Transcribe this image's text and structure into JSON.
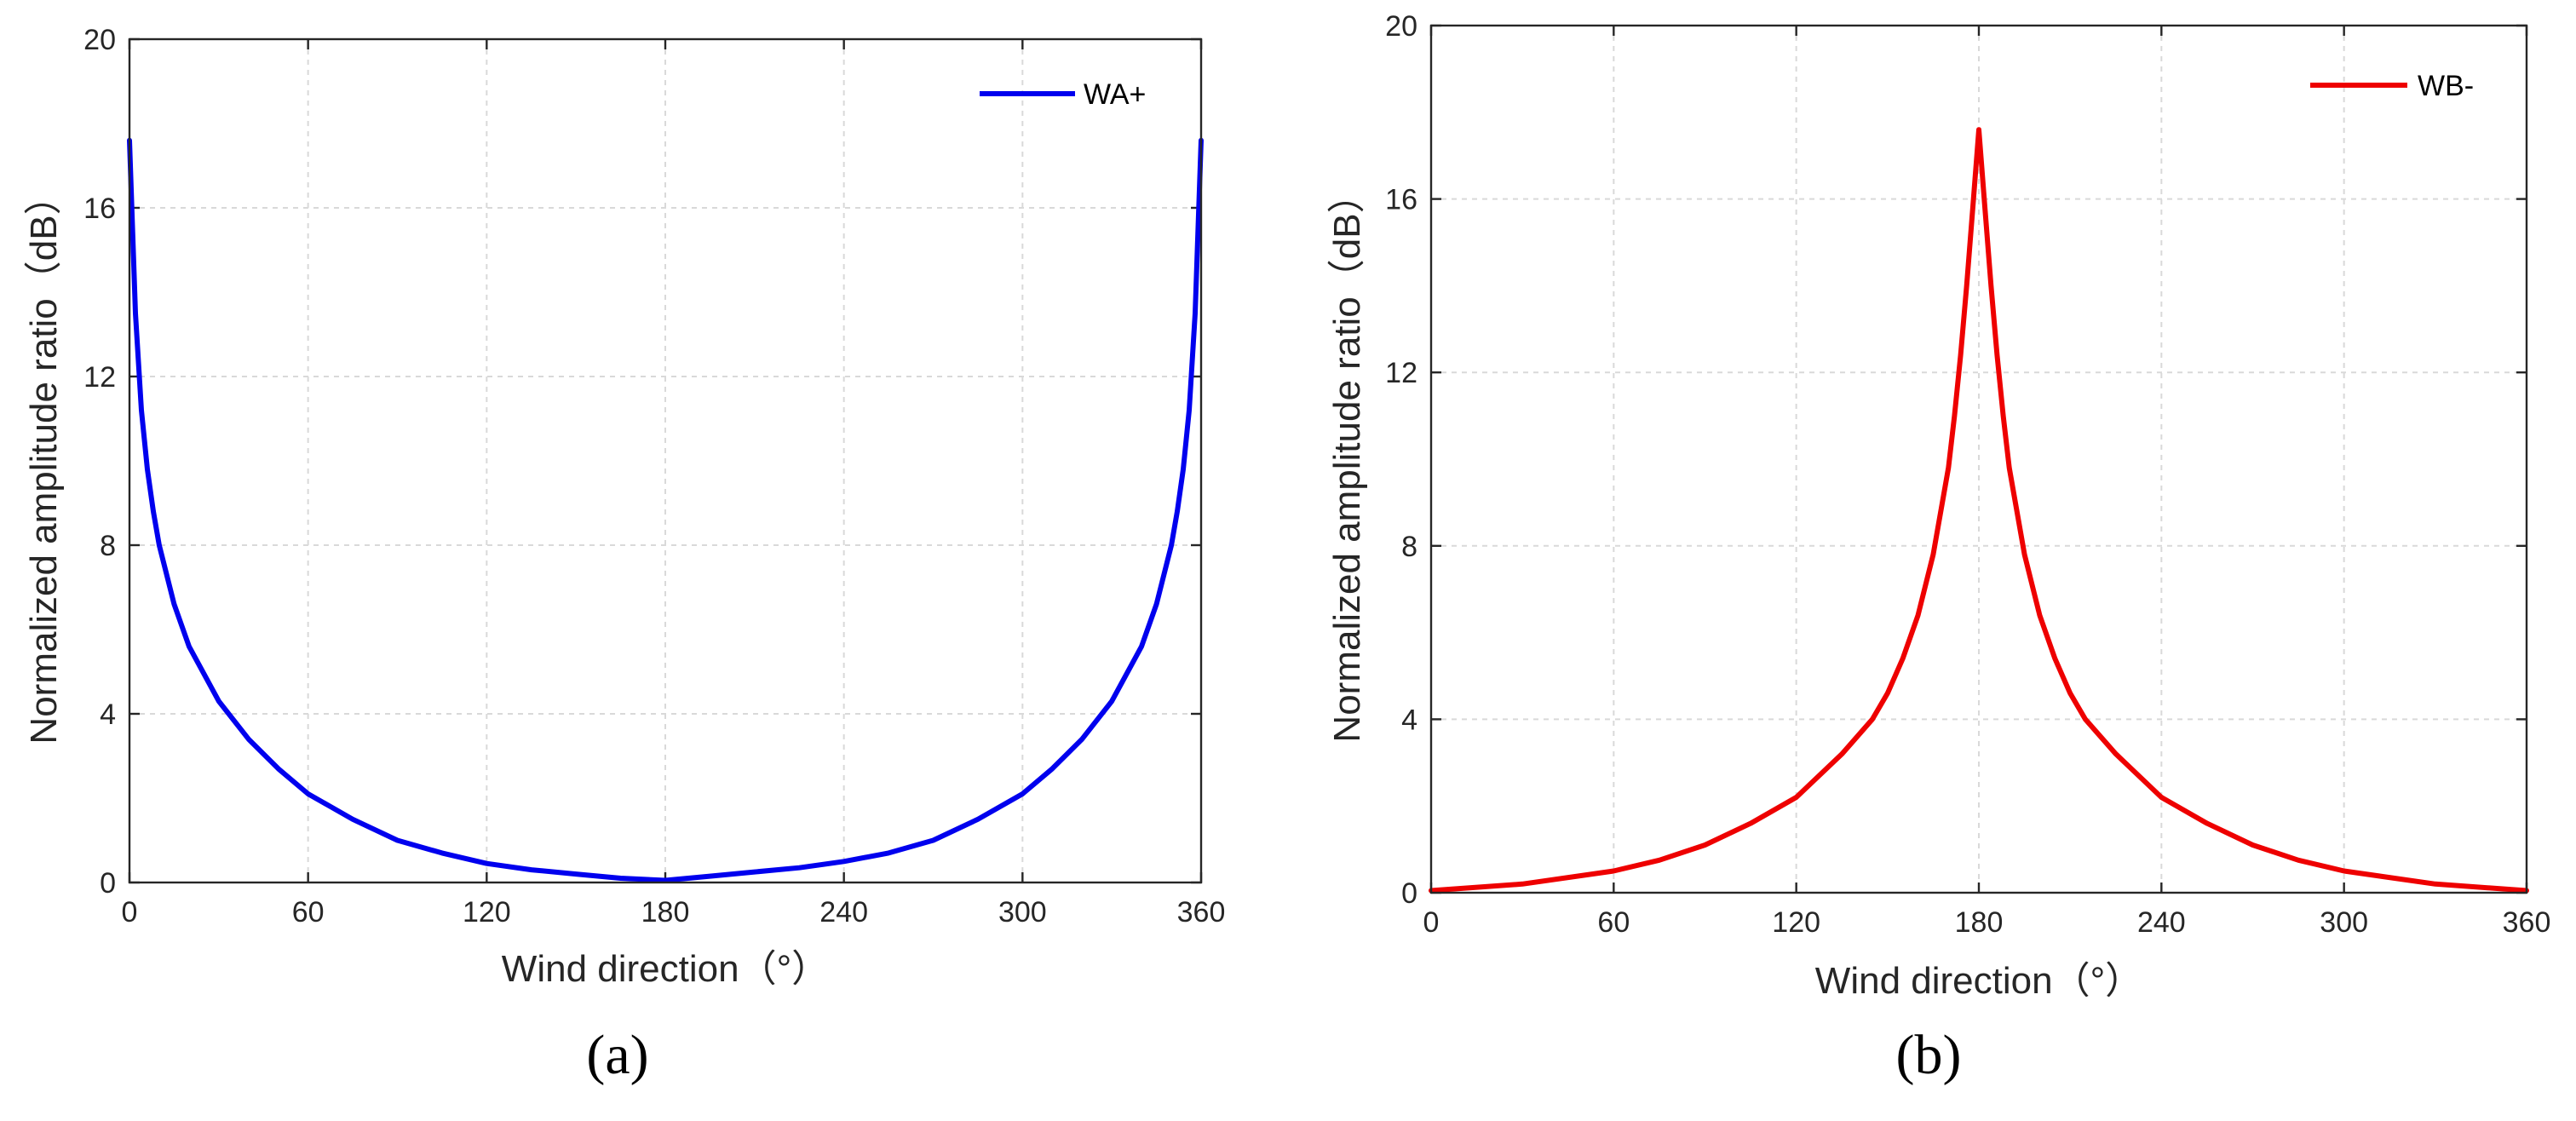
{
  "chart_data": [
    {
      "type": "line",
      "panel_label": "(a)",
      "xlabel": "Wind direction（°）",
      "ylabel": "Normalized amplitude ratio（dB）",
      "xlim": [
        0,
        360
      ],
      "ylim": [
        0,
        20
      ],
      "xticks": [
        "0",
        "60",
        "120",
        "180",
        "240",
        "300",
        "360"
      ],
      "yticks": [
        "0",
        "4",
        "8",
        "12",
        "16",
        "20"
      ],
      "grid": true,
      "legend_position": "top-right",
      "series": [
        {
          "name": "WA+",
          "color": "#0000ee",
          "x": [
            0,
            2,
            4,
            6,
            8,
            10,
            15,
            20,
            30,
            40,
            50,
            60,
            75,
            90,
            105,
            120,
            135,
            150,
            165,
            180,
            195,
            210,
            225,
            240,
            255,
            270,
            285,
            300,
            310,
            320,
            330,
            340,
            345,
            350,
            352,
            354,
            356,
            358,
            360
          ],
          "values": [
            17.6,
            13.5,
            11.2,
            9.8,
            8.8,
            8.0,
            6.6,
            5.6,
            4.3,
            3.4,
            2.7,
            2.1,
            1.5,
            1.0,
            0.7,
            0.45,
            0.3,
            0.2,
            0.1,
            0.05,
            0.15,
            0.25,
            0.35,
            0.5,
            0.7,
            1.0,
            1.5,
            2.1,
            2.7,
            3.4,
            4.3,
            5.6,
            6.6,
            8.0,
            8.8,
            9.8,
            11.2,
            13.5,
            17.6
          ]
        }
      ]
    },
    {
      "type": "line",
      "panel_label": "(b)",
      "xlabel": "Wind direction（°）",
      "ylabel": "Normalized amplitude ratio（dB）",
      "xlim": [
        0,
        360
      ],
      "ylim": [
        0,
        20
      ],
      "xticks": [
        "0",
        "60",
        "120",
        "180",
        "240",
        "300",
        "360"
      ],
      "yticks": [
        "0",
        "4",
        "8",
        "12",
        "16",
        "20"
      ],
      "grid": true,
      "legend_position": "top-right",
      "series": [
        {
          "name": "WB-",
          "color": "#ee0000",
          "x": [
            0,
            30,
            60,
            75,
            90,
            105,
            120,
            135,
            145,
            150,
            155,
            160,
            165,
            170,
            172,
            174,
            176,
            178,
            180,
            182,
            184,
            186,
            188,
            190,
            195,
            200,
            205,
            210,
            215,
            225,
            240,
            255,
            270,
            285,
            300,
            330,
            360
          ],
          "values": [
            0.05,
            0.2,
            0.5,
            0.75,
            1.1,
            1.6,
            2.2,
            3.2,
            4.0,
            4.6,
            5.4,
            6.4,
            7.8,
            9.8,
            11.0,
            12.4,
            14.0,
            15.8,
            17.6,
            15.8,
            14.0,
            12.4,
            11.0,
            9.8,
            7.8,
            6.4,
            5.4,
            4.6,
            4.0,
            3.2,
            2.2,
            1.6,
            1.1,
            0.75,
            0.5,
            0.2,
            0.05
          ]
        }
      ]
    }
  ]
}
